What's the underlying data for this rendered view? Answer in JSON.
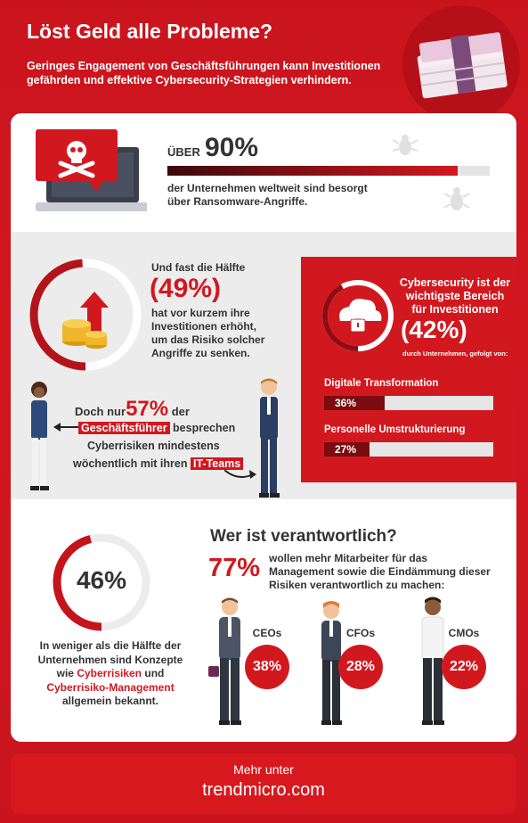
{
  "header": {
    "title": "Löst Geld alle Probleme?",
    "subtitle": "Geringes Engagement von Geschäftsführungen kann Investitionen gefährden und effektive Cybersecurity-Strategien verhindern."
  },
  "stat_ransomware": {
    "prefix": "ÜBER",
    "value": "90%",
    "fraction": 0.9,
    "text_line1": "der Unternehmen weltweit sind besorgt",
    "text_line2": "über Ransomware-Angriffe."
  },
  "stat_invest": {
    "line1": "Und fast die Hälfte",
    "value": "(49%)",
    "fraction": 0.49,
    "line2": "hat vor kurzem ihre",
    "line3": "Investitionen erhöht,",
    "line4": "um das Risiko solcher",
    "line5": "Angriffe zu senken."
  },
  "stat_weekly": {
    "pre": "Doch nur",
    "value": "57%",
    "post": "der",
    "highlight1": "Geschäftsführer",
    "line2_rest": "besprechen",
    "line3": "Cyberrisiken mindestens",
    "line4_pre": "wöchentlich mit ihren",
    "highlight2": "IT-Teams"
  },
  "red_panel": {
    "title_line1": "Cybersecurity ist der",
    "title_line2": "wichtigste Bereich",
    "title_line3": "für Investitionen",
    "value": "(42%)",
    "fraction": 0.42,
    "note": "durch Unternehmen, gefolgt von:",
    "items": [
      {
        "label": "Digitale Transformation",
        "value": "36%",
        "fraction": 0.36
      },
      {
        "label": "Personelle Umstrukturierung",
        "value": "27%",
        "fraction": 0.27
      }
    ]
  },
  "stat_concepts": {
    "value": "46%",
    "fraction": 0.46,
    "line1": "In weniger als die Hälfte der",
    "line2": "Unternehmen sind Konzepte",
    "line3_pre": "wie",
    "line3_red": "Cyberrisiken",
    "line3_post": "und",
    "line4_red": "Cyberrisiko-Management",
    "line5": "allgemein bekannt."
  },
  "responsibility": {
    "title": "Wer ist verantwortlich?",
    "value": "77%",
    "line1": "wollen mehr Mitarbeiter für das",
    "line2": "Management sowie die Eindämmung dieser",
    "line3": "Risiken verantwortlich zu machen:",
    "roles": [
      {
        "label": "CEOs",
        "value": "38%"
      },
      {
        "label": "CFOs",
        "value": "28%"
      },
      {
        "label": "CMOs",
        "value": "22%"
      }
    ]
  },
  "footer": {
    "line1": "Mehr unter",
    "line2": "trendmicro.com"
  },
  "colors": {
    "brand_red": "#d2181f",
    "dark_red": "#7a0c10",
    "track_gray": "#e4e4e4"
  }
}
